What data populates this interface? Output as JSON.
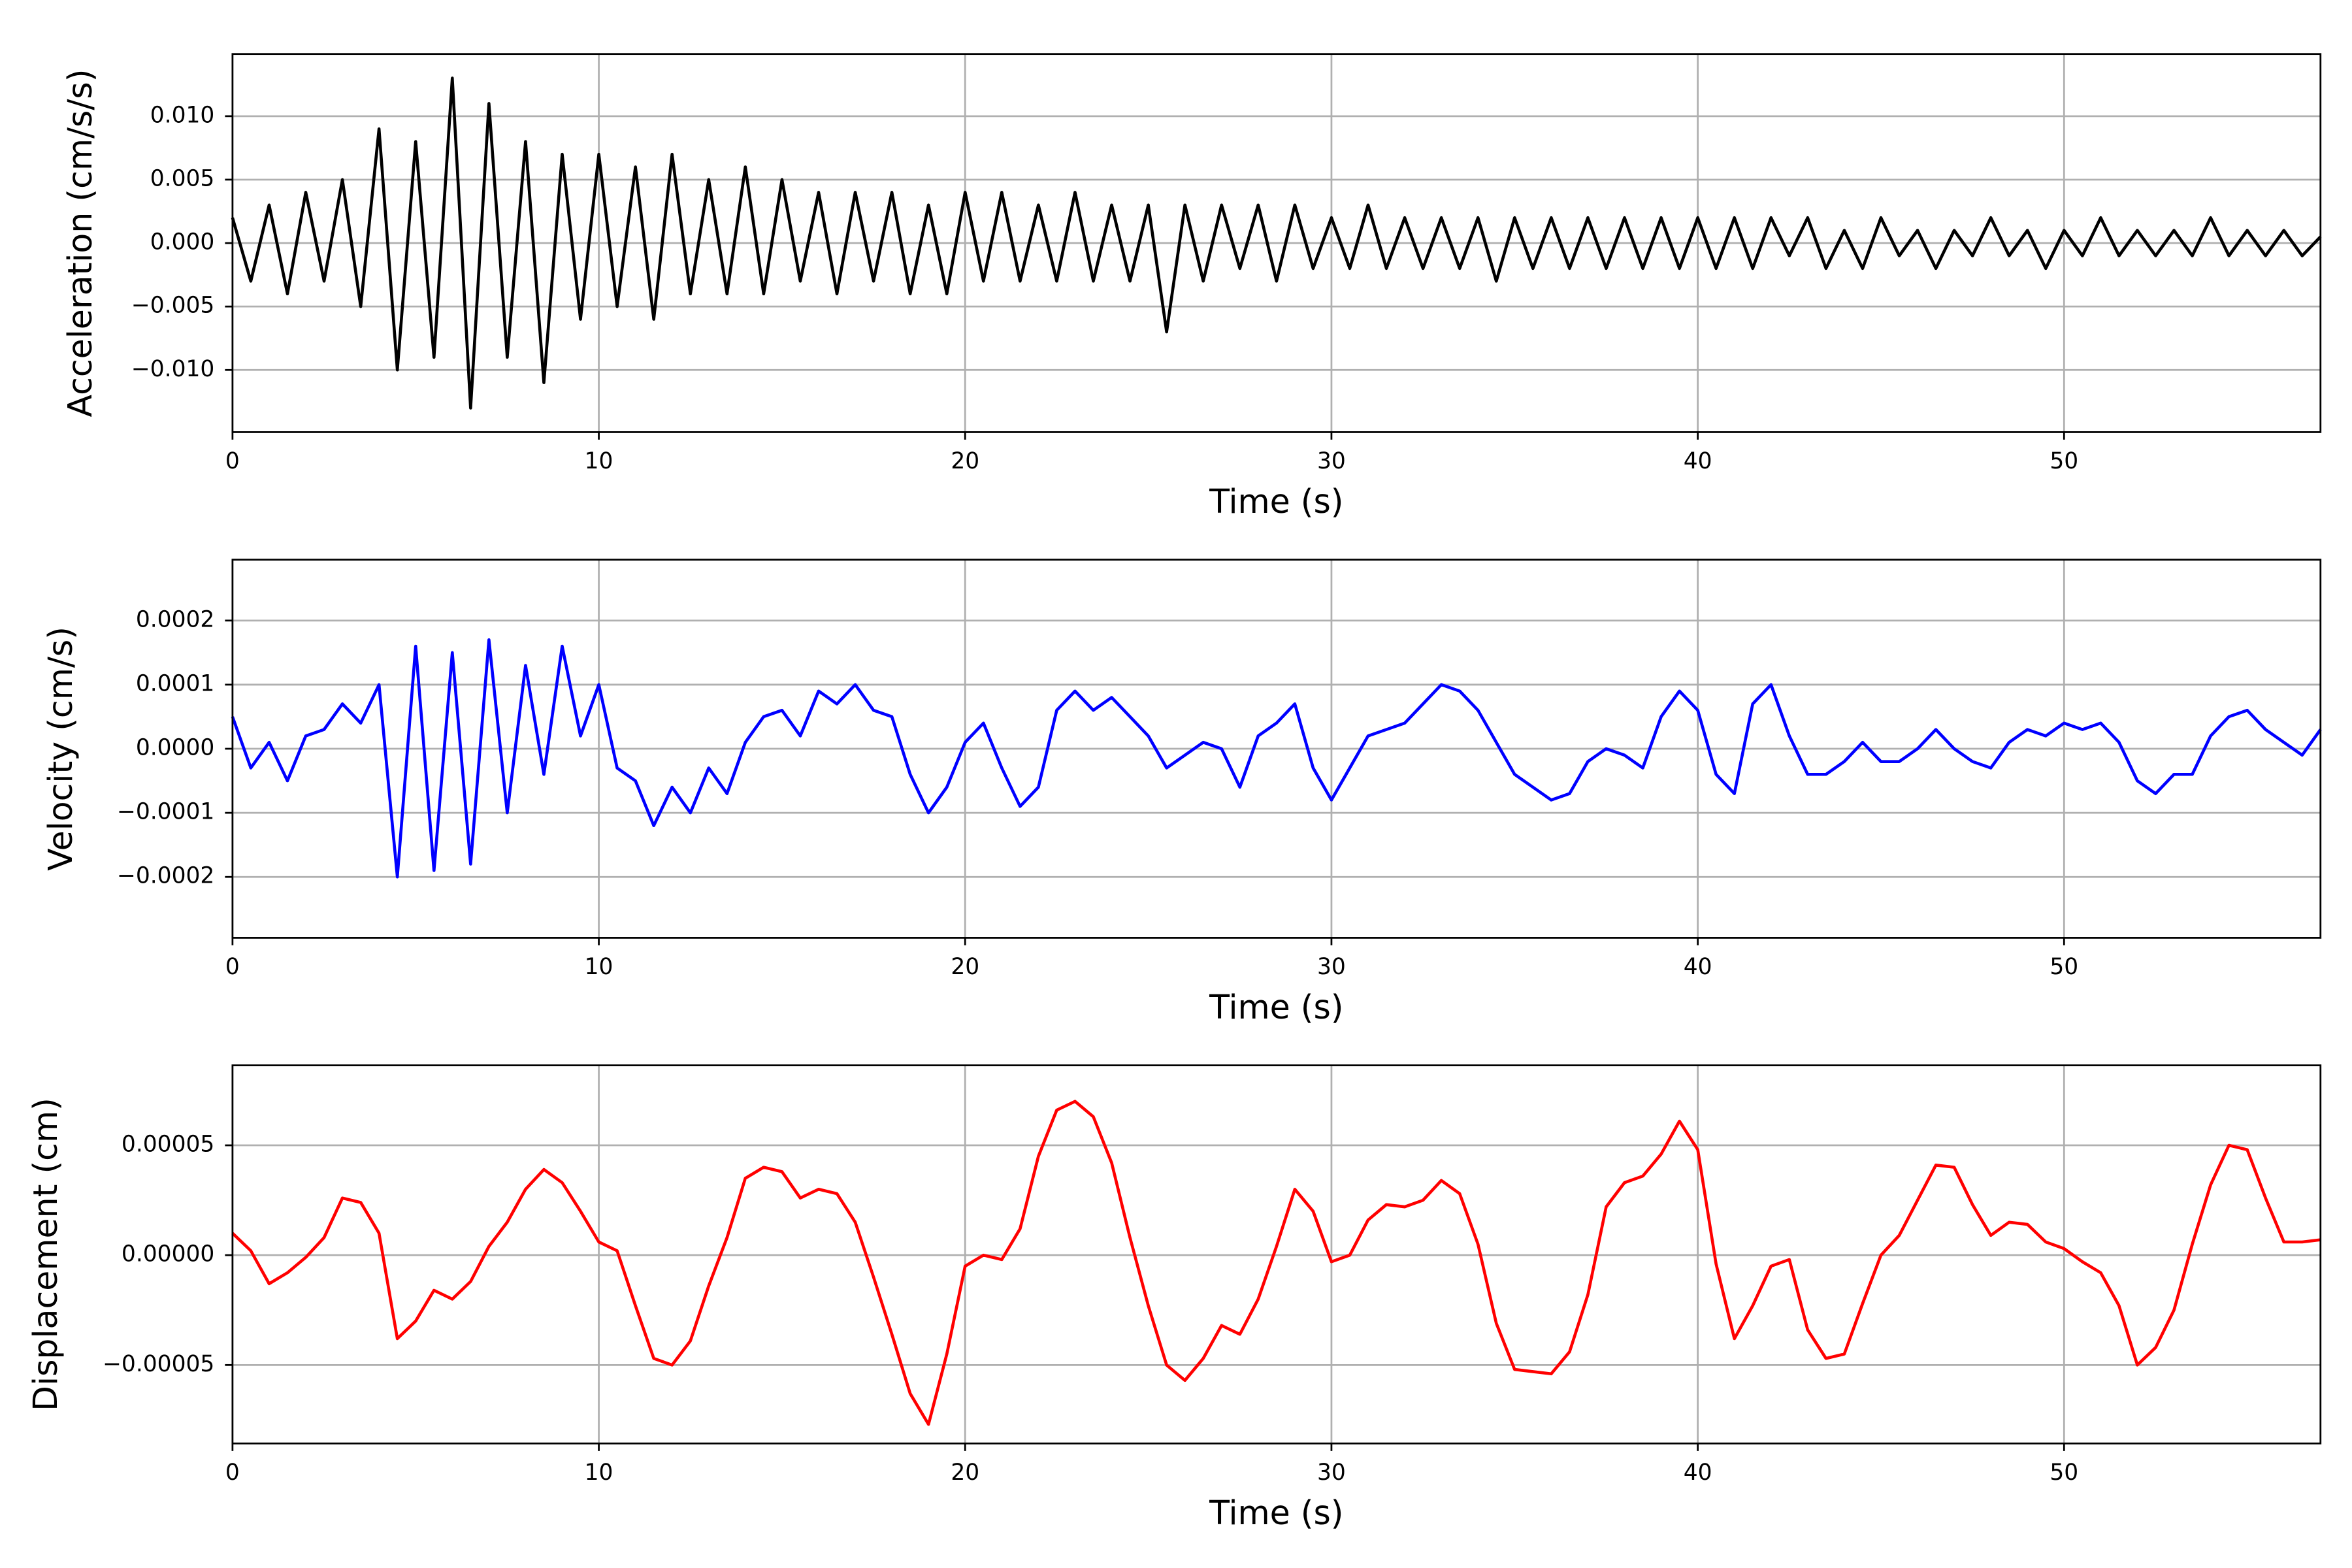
{
  "chart_data": [
    {
      "type": "line",
      "ylabel": "Acceleration (cm/s/s)",
      "xlabel": "Time (s)",
      "x": [
        0,
        0.5,
        1,
        1.5,
        2,
        2.5,
        3,
        3.5,
        4,
        4.5,
        5,
        5.5,
        6,
        6.5,
        7,
        7.5,
        8,
        8.5,
        9,
        9.5,
        10,
        10.5,
        11,
        11.5,
        12,
        12.5,
        13,
        13.5,
        14,
        14.5,
        15,
        15.5,
        16,
        16.5,
        17,
        17.5,
        18,
        18.5,
        19,
        19.5,
        20,
        20.5,
        21,
        21.5,
        22,
        22.5,
        23,
        23.5,
        24,
        24.5,
        25,
        25.5,
        26,
        26.5,
        27,
        27.5,
        28,
        28.5,
        29,
        29.5,
        30,
        30.5,
        31,
        31.5,
        32,
        32.5,
        33,
        33.5,
        34,
        34.5,
        35,
        35.5,
        36,
        36.5,
        37,
        37.5,
        38,
        38.5,
        39,
        39.5,
        40,
        40.5,
        41,
        41.5,
        42,
        42.5,
        43,
        43.5,
        44,
        44.5,
        45,
        45.5,
        46,
        46.5,
        47,
        47.5,
        48,
        48.5,
        49,
        49.5,
        50,
        50.5,
        51,
        51.5,
        52,
        52.5,
        53,
        53.5,
        54,
        54.5,
        55,
        55.5,
        56,
        56.5,
        57
      ],
      "series": [
        {
          "color": "#000000",
          "values": [
            0.002,
            -0.003,
            0.003,
            -0.004,
            0.004,
            -0.003,
            0.005,
            -0.005,
            0.009,
            -0.01,
            0.008,
            -0.009,
            0.013,
            -0.013,
            0.011,
            -0.009,
            0.008,
            -0.011,
            0.007,
            -0.006,
            0.007,
            -0.005,
            0.006,
            -0.006,
            0.007,
            -0.004,
            0.005,
            -0.004,
            0.006,
            -0.004,
            0.005,
            -0.003,
            0.004,
            -0.004,
            0.004,
            -0.003,
            0.004,
            -0.004,
            0.003,
            -0.004,
            0.004,
            -0.003,
            0.004,
            -0.003,
            0.003,
            -0.003,
            0.004,
            -0.003,
            0.003,
            -0.003,
            0.003,
            -0.007,
            0.003,
            -0.003,
            0.003,
            -0.002,
            0.003,
            -0.003,
            0.003,
            -0.002,
            0.002,
            -0.002,
            0.003,
            -0.002,
            0.002,
            -0.002,
            0.002,
            -0.002,
            0.002,
            -0.003,
            0.002,
            -0.002,
            0.002,
            -0.002,
            0.002,
            -0.002,
            0.002,
            -0.002,
            0.002,
            -0.002,
            0.002,
            -0.002,
            0.002,
            -0.002,
            0.002,
            -0.001,
            0.002,
            -0.002,
            0.001,
            -0.002,
            0.002,
            -0.001,
            0.001,
            -0.002,
            0.001,
            -0.001,
            0.002,
            -0.001,
            0.001,
            -0.002,
            0.001,
            -0.001,
            0.002,
            -0.001,
            0.001,
            -0.001,
            0.001,
            -0.001,
            0.002,
            -0.001,
            0.001,
            -0.001,
            0.001,
            -0.001,
            0.0005
          ]
        }
      ],
      "xlim": [
        0,
        57
      ],
      "xticks": [
        0,
        10,
        20,
        30,
        40,
        50
      ],
      "ylim": [
        -0.0149,
        0.0149
      ],
      "yticks": [
        {
          "value": -0.01,
          "label": "−0.010"
        },
        {
          "value": -0.005,
          "label": "−0.005"
        },
        {
          "value": 0,
          "label": "0.000"
        },
        0.005,
        {
          "value": 0.01,
          "label": "0.010"
        }
      ],
      "grid": true
    },
    {
      "type": "line",
      "ylabel": "Velocity (cm/s)",
      "xlabel": "Time (s)",
      "x": [
        0,
        0.5,
        1,
        1.5,
        2,
        2.5,
        3,
        3.5,
        4,
        4.5,
        5,
        5.5,
        6,
        6.5,
        7,
        7.5,
        8,
        8.5,
        9,
        9.5,
        10,
        10.5,
        11,
        11.5,
        12,
        12.5,
        13,
        13.5,
        14,
        14.5,
        15,
        15.5,
        16,
        16.5,
        17,
        17.5,
        18,
        18.5,
        19,
        19.5,
        20,
        20.5,
        21,
        21.5,
        22,
        22.5,
        23,
        23.5,
        24,
        24.5,
        25,
        25.5,
        26,
        26.5,
        27,
        27.5,
        28,
        28.5,
        29,
        29.5,
        30,
        30.5,
        31,
        31.5,
        32,
        32.5,
        33,
        33.5,
        34,
        34.5,
        35,
        35.5,
        36,
        36.5,
        37,
        37.5,
        38,
        38.5,
        39,
        39.5,
        40,
        40.5,
        41,
        41.5,
        42,
        42.5,
        43,
        43.5,
        44,
        44.5,
        45,
        45.5,
        46,
        46.5,
        47,
        47.5,
        48,
        48.5,
        49,
        49.5,
        50,
        50.5,
        51,
        51.5,
        52,
        52.5,
        53,
        53.5,
        54,
        54.5,
        55,
        55.5,
        56,
        56.5,
        57
      ],
      "series": [
        {
          "color": "#0000ff",
          "values": [
            5e-05,
            -3e-05,
            1e-05,
            -5e-05,
            2e-05,
            3e-05,
            7e-05,
            4e-05,
            0.0001,
            -0.0002,
            0.00016,
            -0.00019,
            0.00015,
            -0.00018,
            0.00017,
            -0.0001,
            0.00013,
            -4e-05,
            0.00016,
            2e-05,
            0.0001,
            -3e-05,
            -5e-05,
            -0.00012,
            -6e-05,
            -0.0001,
            -3e-05,
            -7e-05,
            1e-05,
            5e-05,
            6e-05,
            2e-05,
            9e-05,
            7e-05,
            0.0001,
            6e-05,
            5e-05,
            -4e-05,
            -0.0001,
            -6e-05,
            1e-05,
            4e-05,
            -3e-05,
            -9e-05,
            -6e-05,
            6e-05,
            9e-05,
            6e-05,
            8e-05,
            5e-05,
            2e-05,
            -3e-05,
            -1e-05,
            1e-05,
            0,
            -6e-05,
            2e-05,
            4e-05,
            7e-05,
            -3e-05,
            -8e-05,
            -3e-05,
            2e-05,
            3e-05,
            4e-05,
            7e-05,
            0.0001,
            9e-05,
            6e-05,
            1e-05,
            -4e-05,
            -6e-05,
            -8e-05,
            -7e-05,
            -2e-05,
            0,
            -1e-05,
            -3e-05,
            5e-05,
            9e-05,
            6e-05,
            -4e-05,
            -7e-05,
            7e-05,
            0.0001,
            2e-05,
            -4e-05,
            -4e-05,
            -2e-05,
            1e-05,
            -2e-05,
            -2e-05,
            0,
            3e-05,
            0,
            -2e-05,
            -3e-05,
            1e-05,
            3e-05,
            2e-05,
            4e-05,
            3e-05,
            4e-05,
            1e-05,
            -5e-05,
            -7e-05,
            -4e-05,
            -4e-05,
            2e-05,
            5e-05,
            6e-05,
            3e-05,
            1e-05,
            -1e-05,
            3e-05
          ]
        }
      ],
      "xlim": [
        0,
        57
      ],
      "xticks": [
        0,
        10,
        20,
        30,
        40,
        50
      ],
      "ylim": [
        -0.000295,
        0.000295
      ],
      "yticks": [
        {
          "value": -0.0002,
          "label": "−0.0002"
        },
        {
          "value": -0.0001,
          "label": "−0.0001"
        },
        {
          "value": 0,
          "label": "0.0000"
        },
        0.0001,
        0.0002
      ],
      "grid": true
    },
    {
      "type": "line",
      "ylabel": "Displacement (cm)",
      "xlabel": "Time (s)",
      "x": [
        0,
        0.5,
        1,
        1.5,
        2,
        2.5,
        3,
        3.5,
        4,
        4.5,
        5,
        5.5,
        6,
        6.5,
        7,
        7.5,
        8,
        8.5,
        9,
        9.5,
        10,
        10.5,
        11,
        11.5,
        12,
        12.5,
        13,
        13.5,
        14,
        14.5,
        15,
        15.5,
        16,
        16.5,
        17,
        17.5,
        18,
        18.5,
        19,
        19.5,
        20,
        20.5,
        21,
        21.5,
        22,
        22.5,
        23,
        23.5,
        24,
        24.5,
        25,
        25.5,
        26,
        26.5,
        27,
        27.5,
        28,
        28.5,
        29,
        29.5,
        30,
        30.5,
        31,
        31.5,
        32,
        32.5,
        33,
        33.5,
        34,
        34.5,
        35,
        35.5,
        36,
        36.5,
        37,
        37.5,
        38,
        38.5,
        39,
        39.5,
        40,
        40.5,
        41,
        41.5,
        42,
        42.5,
        43,
        43.5,
        44,
        44.5,
        45,
        45.5,
        46,
        46.5,
        47,
        47.5,
        48,
        48.5,
        49,
        49.5,
        50,
        50.5,
        51,
        51.5,
        52,
        52.5,
        53,
        53.5,
        54,
        54.5,
        55,
        55.5,
        56,
        56.5,
        57
      ],
      "series": [
        {
          "color": "#ff0000",
          "values": [
            1e-05,
            2e-06,
            -1.3e-05,
            -8e-06,
            -1e-06,
            8e-06,
            2.6e-05,
            2.4e-05,
            1e-05,
            -3.8e-05,
            -3e-05,
            -1.6e-05,
            -2e-05,
            -1.2e-05,
            4e-06,
            1.5e-05,
            3e-05,
            3.9e-05,
            3.3e-05,
            2e-05,
            6e-06,
            2e-06,
            -2.3e-05,
            -4.7e-05,
            -5e-05,
            -3.9e-05,
            -1.4e-05,
            8e-06,
            3.5e-05,
            4e-05,
            3.8e-05,
            2.6e-05,
            3e-05,
            2.8e-05,
            1.5e-05,
            -1e-05,
            -3.6e-05,
            -6.3e-05,
            -7.7e-05,
            -4.5e-05,
            -5e-06,
            0,
            -2e-06,
            1.2e-05,
            4.5e-05,
            6.6e-05,
            7e-05,
            6.3e-05,
            4.2e-05,
            8e-06,
            -2.3e-05,
            -5e-05,
            -5.7e-05,
            -4.7e-05,
            -3.2e-05,
            -3.6e-05,
            -2e-05,
            4e-06,
            3e-05,
            2e-05,
            -3e-06,
            0,
            1.6e-05,
            2.3e-05,
            2.2e-05,
            2.5e-05,
            3.4e-05,
            2.8e-05,
            5e-06,
            -3.1e-05,
            -5.2e-05,
            -5.3e-05,
            -5.4e-05,
            -4.4e-05,
            -1.8e-05,
            2.2e-05,
            3.3e-05,
            3.6e-05,
            4.6e-05,
            6.1e-05,
            4.8e-05,
            -4e-06,
            -3.8e-05,
            -2.3e-05,
            -5e-06,
            -2e-06,
            -3.4e-05,
            -4.7e-05,
            -4.5e-05,
            -2.2e-05,
            0,
            9e-06,
            2.5e-05,
            4.1e-05,
            4e-05,
            2.3e-05,
            9e-06,
            1.5e-05,
            1.4e-05,
            6e-06,
            3e-06,
            -3e-06,
            -8e-06,
            -2.3e-05,
            -5e-05,
            -4.2e-05,
            -2.5e-05,
            5e-06,
            3.2e-05,
            5e-05,
            4.8e-05,
            2.6e-05,
            6e-06,
            6e-06,
            7e-06
          ]
        }
      ],
      "xlim": [
        0,
        57
      ],
      "xticks": [
        0,
        10,
        20,
        30,
        40,
        50
      ],
      "ylim": [
        -8.57e-05,
        8.64e-05
      ],
      "yticks": [
        {
          "value": -5e-05,
          "label": "−0.00005"
        },
        {
          "value": 0,
          "label": "0.00000"
        },
        5e-05
      ],
      "grid": true
    }
  ]
}
